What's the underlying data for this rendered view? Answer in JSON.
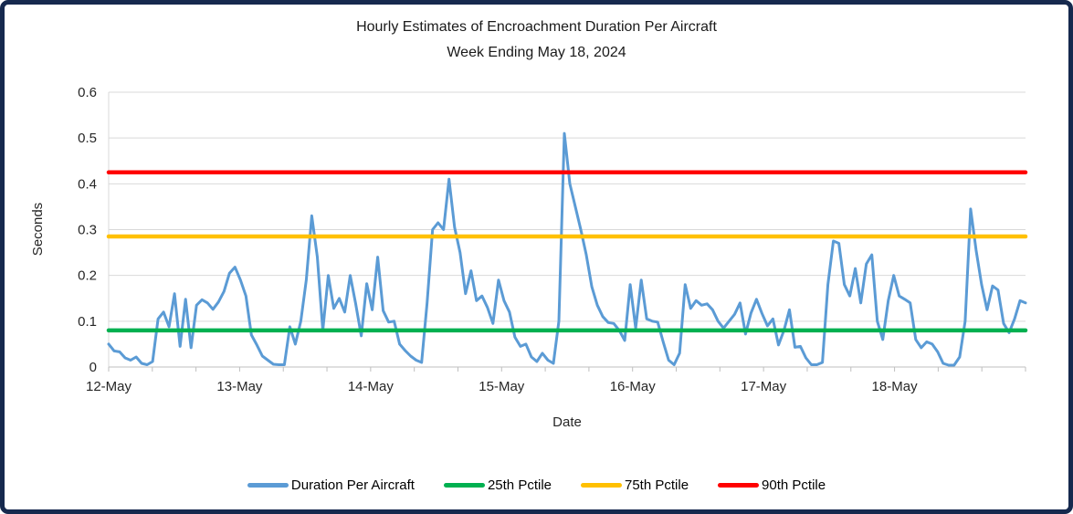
{
  "window": {
    "background": "#FFFFFF",
    "border_color": "#16294E"
  },
  "title": {
    "line1": "Hourly Estimates of Encroachment Duration Per Aircraft",
    "line2": "Week Ending May 18, 2024"
  },
  "legend": {
    "items": [
      {
        "label": "Duration Per Aircraft",
        "color": "#5B9BD5"
      },
      {
        "label": "25th Pctile",
        "color": "#00B050"
      },
      {
        "label": "75th Pctile",
        "color": "#FFC000"
      },
      {
        "label": "90th Pctile",
        "color": "#FF0000"
      }
    ]
  },
  "chart_data": {
    "type": "line",
    "title": "Hourly Estimates of Encroachment Duration Per Aircraft",
    "subtitle": "Week Ending May 18, 2024",
    "xlabel": "Date",
    "ylabel": "Seconds",
    "ylim": [
      0,
      0.6
    ],
    "ytick_interval": 0.1,
    "ytick_labels": [
      "0",
      "0.1",
      "0.2",
      "0.3",
      "0.4",
      "0.5",
      "0.6"
    ],
    "x_day_labels": [
      "12-May",
      "13-May",
      "14-May",
      "15-May",
      "16-May",
      "17-May",
      "18-May"
    ],
    "points_per_day": 24,
    "minor_tick_hours": 8,
    "grid": true,
    "grid_color": "#D9D9D9",
    "axis_color": "#BFBFBF",
    "text_color": "#262626",
    "legend_position": "bottom",
    "series": [
      {
        "name": "Duration Per Aircraft",
        "color": "#5B9BD5",
        "type": "line",
        "values": [
          0.05,
          0.035,
          0.033,
          0.02,
          0.015,
          0.022,
          0.008,
          0.005,
          0.012,
          0.105,
          0.12,
          0.088,
          0.16,
          0.045,
          0.148,
          0.042,
          0.135,
          0.147,
          0.14,
          0.126,
          0.142,
          0.165,
          0.205,
          0.218,
          0.19,
          0.155,
          0.07,
          0.048,
          0.024,
          0.015,
          0.006,
          0.005,
          0.005,
          0.088,
          0.05,
          0.1,
          0.19,
          0.33,
          0.24,
          0.08,
          0.2,
          0.128,
          0.15,
          0.12,
          0.2,
          0.138,
          0.068,
          0.182,
          0.125,
          0.24,
          0.123,
          0.098,
          0.1,
          0.05,
          0.036,
          0.024,
          0.015,
          0.01,
          0.14,
          0.3,
          0.315,
          0.3,
          0.41,
          0.305,
          0.25,
          0.16,
          0.21,
          0.145,
          0.155,
          0.13,
          0.095,
          0.19,
          0.145,
          0.12,
          0.065,
          0.045,
          0.05,
          0.022,
          0.012,
          0.03,
          0.015,
          0.008,
          0.1,
          0.51,
          0.4,
          0.35,
          0.3,
          0.245,
          0.175,
          0.135,
          0.11,
          0.097,
          0.095,
          0.08,
          0.058,
          0.18,
          0.085,
          0.19,
          0.105,
          0.1,
          0.098,
          0.055,
          0.015,
          0.005,
          0.03,
          0.18,
          0.128,
          0.145,
          0.135,
          0.138,
          0.125,
          0.1,
          0.085,
          0.1,
          0.115,
          0.14,
          0.072,
          0.118,
          0.148,
          0.117,
          0.09,
          0.105,
          0.048,
          0.08,
          0.125,
          0.043,
          0.045,
          0.02,
          0.005,
          0.005,
          0.01,
          0.18,
          0.275,
          0.27,
          0.18,
          0.155,
          0.215,
          0.14,
          0.225,
          0.245,
          0.1,
          0.06,
          0.145,
          0.2,
          0.155,
          0.148,
          0.14,
          0.06,
          0.042,
          0.055,
          0.05,
          0.033,
          0.008,
          0.004,
          0.004,
          0.022,
          0.1,
          0.345,
          0.255,
          0.18,
          0.125,
          0.177,
          0.168,
          0.095,
          0.075,
          0.105,
          0.145,
          0.14
        ]
      },
      {
        "name": "25th Pctile",
        "color": "#00B050",
        "type": "hline",
        "value": 0.08
      },
      {
        "name": "75th Pctile",
        "color": "#FFC000",
        "type": "hline",
        "value": 0.285
      },
      {
        "name": "90th Pctile",
        "color": "#FF0000",
        "type": "hline",
        "value": 0.425
      }
    ]
  }
}
